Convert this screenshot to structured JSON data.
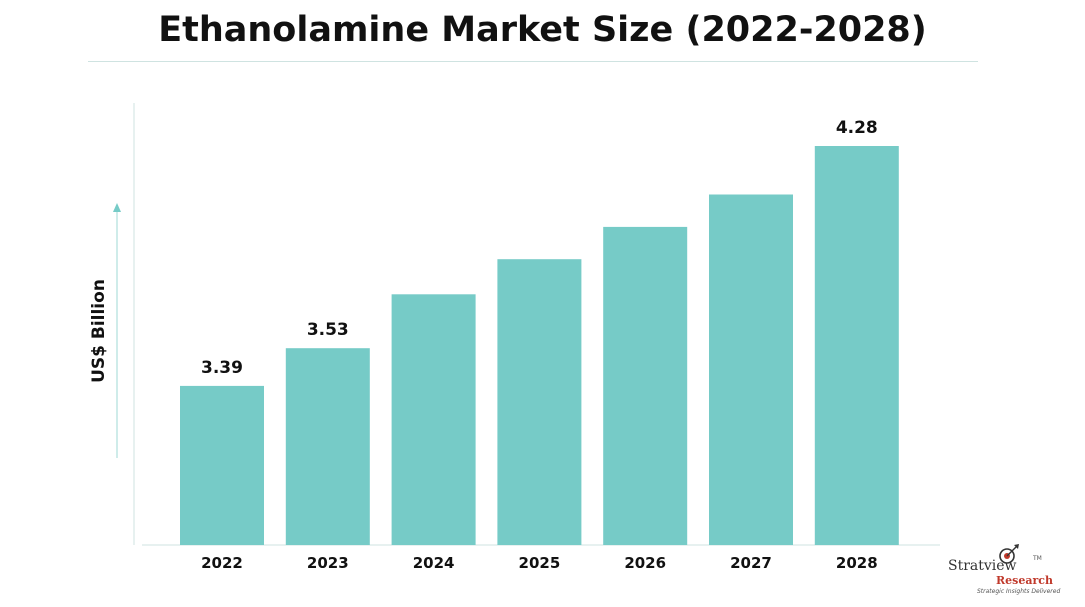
{
  "title": "Ethanolamine Market Size (2022-2028)",
  "chart_data": {
    "type": "bar",
    "title": "Ethanolamine Market Size (2022-2028)",
    "xlabel": "",
    "ylabel": "US$ Billion",
    "categories": [
      "2022",
      "2023",
      "2024",
      "2025",
      "2026",
      "2027",
      "2028"
    ],
    "values": [
      3.39,
      3.53,
      3.73,
      3.86,
      3.98,
      4.1,
      4.28
    ],
    "data_labels": [
      "3.39",
      "3.53",
      "",
      "",
      "",
      "",
      "4.28"
    ],
    "bar_color": "#76cbc7",
    "ylim": [
      2.8,
      4.4
    ],
    "grid": false,
    "legend": "none"
  },
  "logo": {
    "name": "Stratview",
    "trademark": "TM",
    "subname": "Research",
    "tagline": "Strategic Insights Delivered"
  }
}
